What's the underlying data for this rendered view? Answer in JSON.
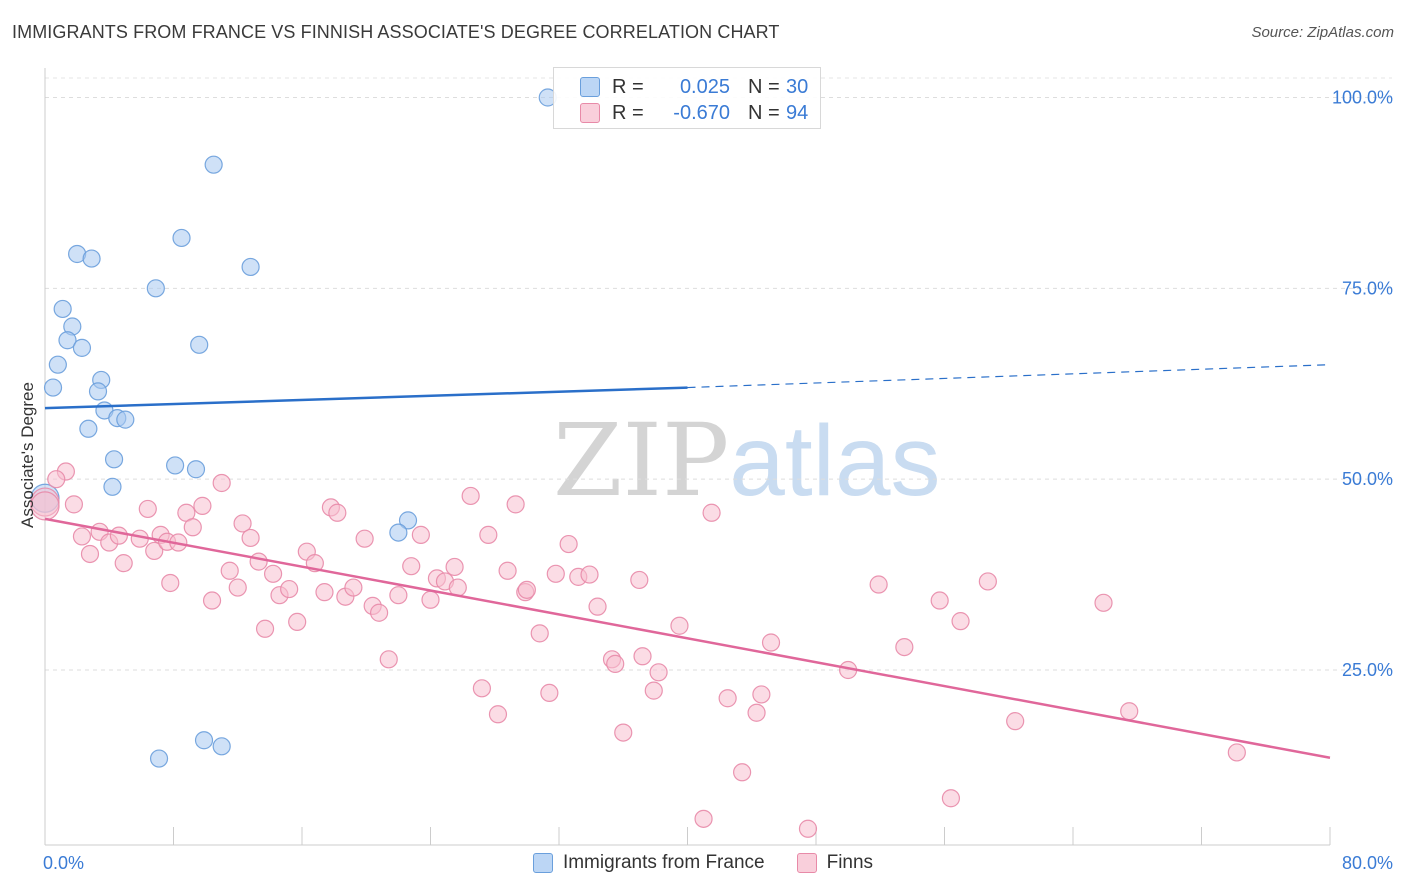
{
  "title": "IMMIGRANTS FROM FRANCE VS FINNISH ASSOCIATE'S DEGREE CORRELATION CHART",
  "source": "Source: ZipAtlas.com",
  "watermark": {
    "zip": "ZIP",
    "atlas": "atlas"
  },
  "legend": {
    "france": {
      "label": "Immigrants from France",
      "color": "#a8c8f0",
      "border": "#6a9fdc"
    },
    "finns": {
      "label": "Finns",
      "color": "#f8c0d0",
      "border": "#e88aa8"
    }
  },
  "stats": {
    "france": {
      "r_label": "R =",
      "r_value": "0.025",
      "n_label": "N =",
      "n_value": "30"
    },
    "finns": {
      "r_label": "R =",
      "r_value": "-0.670",
      "n_label": "N =",
      "n_value": "94"
    }
  },
  "chart_data": {
    "type": "scatter",
    "ylabel": "Associate's Degree",
    "xlim": [
      0,
      80
    ],
    "ylim": [
      0,
      100
    ],
    "x_ticks": [
      "0.0%",
      "80.0%"
    ],
    "y_ticks": [
      {
        "value": 25,
        "label": "25.0%"
      },
      {
        "value": 50,
        "label": "50.0%"
      },
      {
        "value": 75,
        "label": "75.0%"
      },
      {
        "value": 100,
        "label": "100.0%"
      }
    ],
    "series": [
      {
        "name": "Immigrants from France",
        "color": "#a8c8f0",
        "stroke": "#6a9fdc",
        "trend_color": "#2a6fc9",
        "trend": {
          "x0": 0,
          "y0": 59.3,
          "x1": 40,
          "y1": 62.0,
          "dashed_to_x": 80,
          "dashed_to_y": 65.0
        },
        "points": [
          [
            31.3,
            100.0
          ],
          [
            10.5,
            91.2
          ],
          [
            8.5,
            81.6
          ],
          [
            2.0,
            79.5
          ],
          [
            2.9,
            78.9
          ],
          [
            12.8,
            77.8
          ],
          [
            6.9,
            75.0
          ],
          [
            1.1,
            72.3
          ],
          [
            1.7,
            70.0
          ],
          [
            1.4,
            68.2
          ],
          [
            2.3,
            67.2
          ],
          [
            9.6,
            67.6
          ],
          [
            0.8,
            65.0
          ],
          [
            3.5,
            63.0
          ],
          [
            0.5,
            62.0
          ],
          [
            3.3,
            61.5
          ],
          [
            3.7,
            59.0
          ],
          [
            4.5,
            58.0
          ],
          [
            5.0,
            57.8
          ],
          [
            2.7,
            56.6
          ],
          [
            4.3,
            52.6
          ],
          [
            8.1,
            51.8
          ],
          [
            9.4,
            51.3
          ],
          [
            4.2,
            49.0
          ],
          [
            22.6,
            44.6
          ],
          [
            22.0,
            43.0
          ],
          [
            0.0,
            47.5
          ],
          [
            7.1,
            13.4
          ],
          [
            9.9,
            15.8
          ],
          [
            11.0,
            15.0
          ]
        ]
      },
      {
        "name": "Finns",
        "color": "#f8c0d0",
        "stroke": "#e88aa8",
        "trend_color": "#e0679a",
        "trend": {
          "x0": 0,
          "y0": 44.8,
          "x1": 80,
          "y1": 13.5
        },
        "points": [
          [
            0.0,
            47.0
          ],
          [
            1.3,
            51.0
          ],
          [
            0.7,
            50.0
          ],
          [
            1.8,
            46.7
          ],
          [
            2.3,
            42.5
          ],
          [
            2.8,
            40.2
          ],
          [
            3.4,
            43.1
          ],
          [
            4.0,
            41.7
          ],
          [
            4.6,
            42.6
          ],
          [
            4.9,
            39.0
          ],
          [
            5.9,
            42.2
          ],
          [
            6.4,
            46.1
          ],
          [
            6.8,
            40.6
          ],
          [
            7.2,
            42.7
          ],
          [
            7.6,
            41.8
          ],
          [
            7.8,
            36.4
          ],
          [
            8.3,
            41.7
          ],
          [
            8.8,
            45.6
          ],
          [
            9.2,
            43.7
          ],
          [
            9.8,
            46.5
          ],
          [
            10.4,
            34.1
          ],
          [
            11.0,
            49.5
          ],
          [
            11.5,
            38.0
          ],
          [
            12.0,
            35.8
          ],
          [
            12.3,
            44.2
          ],
          [
            12.8,
            42.3
          ],
          [
            13.3,
            39.2
          ],
          [
            13.7,
            30.4
          ],
          [
            14.2,
            37.6
          ],
          [
            14.6,
            34.8
          ],
          [
            15.2,
            35.6
          ],
          [
            15.7,
            31.3
          ],
          [
            16.3,
            40.5
          ],
          [
            16.8,
            39.0
          ],
          [
            17.4,
            35.2
          ],
          [
            17.8,
            46.3
          ],
          [
            18.2,
            45.6
          ],
          [
            18.7,
            34.6
          ],
          [
            19.2,
            35.8
          ],
          [
            19.9,
            42.2
          ],
          [
            20.4,
            33.4
          ],
          [
            20.8,
            32.5
          ],
          [
            21.4,
            26.4
          ],
          [
            22.0,
            34.8
          ],
          [
            22.8,
            38.6
          ],
          [
            23.4,
            42.7
          ],
          [
            24.0,
            34.2
          ],
          [
            24.4,
            37.0
          ],
          [
            24.9,
            36.6
          ],
          [
            25.5,
            38.5
          ],
          [
            25.7,
            35.8
          ],
          [
            26.5,
            47.8
          ],
          [
            27.2,
            22.6
          ],
          [
            27.6,
            42.7
          ],
          [
            28.2,
            19.2
          ],
          [
            28.8,
            38.0
          ],
          [
            29.3,
            46.7
          ],
          [
            29.9,
            35.2
          ],
          [
            30.8,
            29.8
          ],
          [
            31.4,
            22.0
          ],
          [
            31.8,
            37.6
          ],
          [
            32.6,
            41.5
          ],
          [
            33.2,
            37.2
          ],
          [
            33.9,
            37.5
          ],
          [
            34.4,
            33.3
          ],
          [
            35.3,
            26.4
          ],
          [
            35.5,
            25.8
          ],
          [
            36.0,
            16.8
          ],
          [
            37.0,
            36.8
          ],
          [
            37.2,
            26.8
          ],
          [
            37.9,
            22.3
          ],
          [
            38.2,
            24.7
          ],
          [
            39.5,
            30.8
          ],
          [
            41.0,
            5.5
          ],
          [
            41.5,
            45.6
          ],
          [
            42.5,
            21.3
          ],
          [
            43.4,
            11.6
          ],
          [
            44.3,
            19.4
          ],
          [
            44.6,
            21.8
          ],
          [
            45.2,
            28.6
          ],
          [
            47.5,
            4.2
          ],
          [
            50.0,
            25.0
          ],
          [
            51.9,
            36.2
          ],
          [
            53.5,
            28.0
          ],
          [
            55.7,
            34.1
          ],
          [
            56.4,
            8.2
          ],
          [
            57.0,
            31.4
          ],
          [
            58.7,
            36.6
          ],
          [
            60.4,
            18.3
          ],
          [
            65.9,
            33.8
          ],
          [
            67.5,
            19.6
          ],
          [
            74.2,
            14.2
          ],
          [
            0.0,
            46.5
          ],
          [
            30.0,
            35.5
          ]
        ]
      }
    ]
  }
}
